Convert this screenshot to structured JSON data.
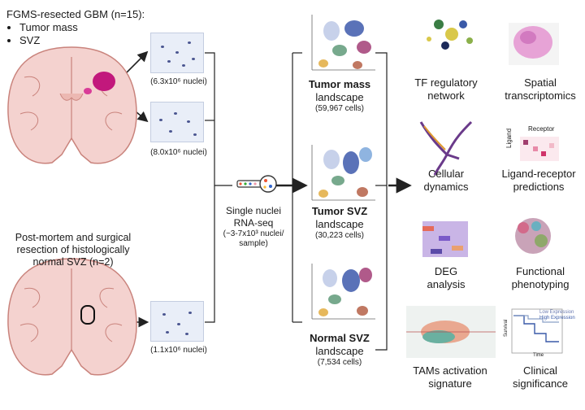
{
  "cohort": {
    "title": "FGMS-resected GBM (n=15):",
    "items": [
      "Tumor mass",
      "SVZ"
    ]
  },
  "normal_cohort": {
    "line1": "Post-mortem and surgical",
    "line2": "resection of histologically",
    "line3": "normal SVZ (n=2)"
  },
  "nuclei": {
    "tm": "(6.3x10⁶ nuclei)",
    "svz": "(8.0x10⁶ nuclei)",
    "normal": "(1.1x10⁶ nuclei)"
  },
  "method": {
    "line1": "Single nuclei",
    "line2": "RNA-seq",
    "line3": "(~3-7x10³ nuclei/",
    "line4": "sample)"
  },
  "landscapes": [
    {
      "name": "Tumor mass",
      "sub": "landscape",
      "cells": "(59,967 cells)"
    },
    {
      "name": "Tumor SVZ",
      "sub": "landscape",
      "cells": "(30,223 cells)"
    },
    {
      "name": "Normal SVZ",
      "sub": "landscape",
      "cells": "(7,534 cells)"
    }
  ],
  "analyses": {
    "tf": [
      "TF regulatory",
      "network"
    ],
    "spatial": [
      "Spatial",
      "transcriptomics"
    ],
    "cellular": [
      "Cellular",
      "dynamics"
    ],
    "ligand": [
      "Ligand-receptor",
      "predictions"
    ],
    "deg": [
      "DEG",
      "analysis"
    ],
    "functional": [
      "Functional",
      "phenotyping"
    ],
    "tams": [
      "TAMs activation",
      "signature"
    ],
    "clinical": [
      "Clinical",
      "significance"
    ]
  },
  "lr_panel": {
    "receptor": "Receptor",
    "ligand": "Ligand"
  },
  "km_panel": {
    "low": "Low Expression",
    "high": "High Expression",
    "y": "Survival",
    "x": "Time"
  },
  "colors": {
    "brain": "#f4d2cf",
    "brain_stroke": "#c9837c",
    "tumor": "#c2187c",
    "svz_bar": "#d93c98",
    "slide_bg": "#e9eef8"
  }
}
